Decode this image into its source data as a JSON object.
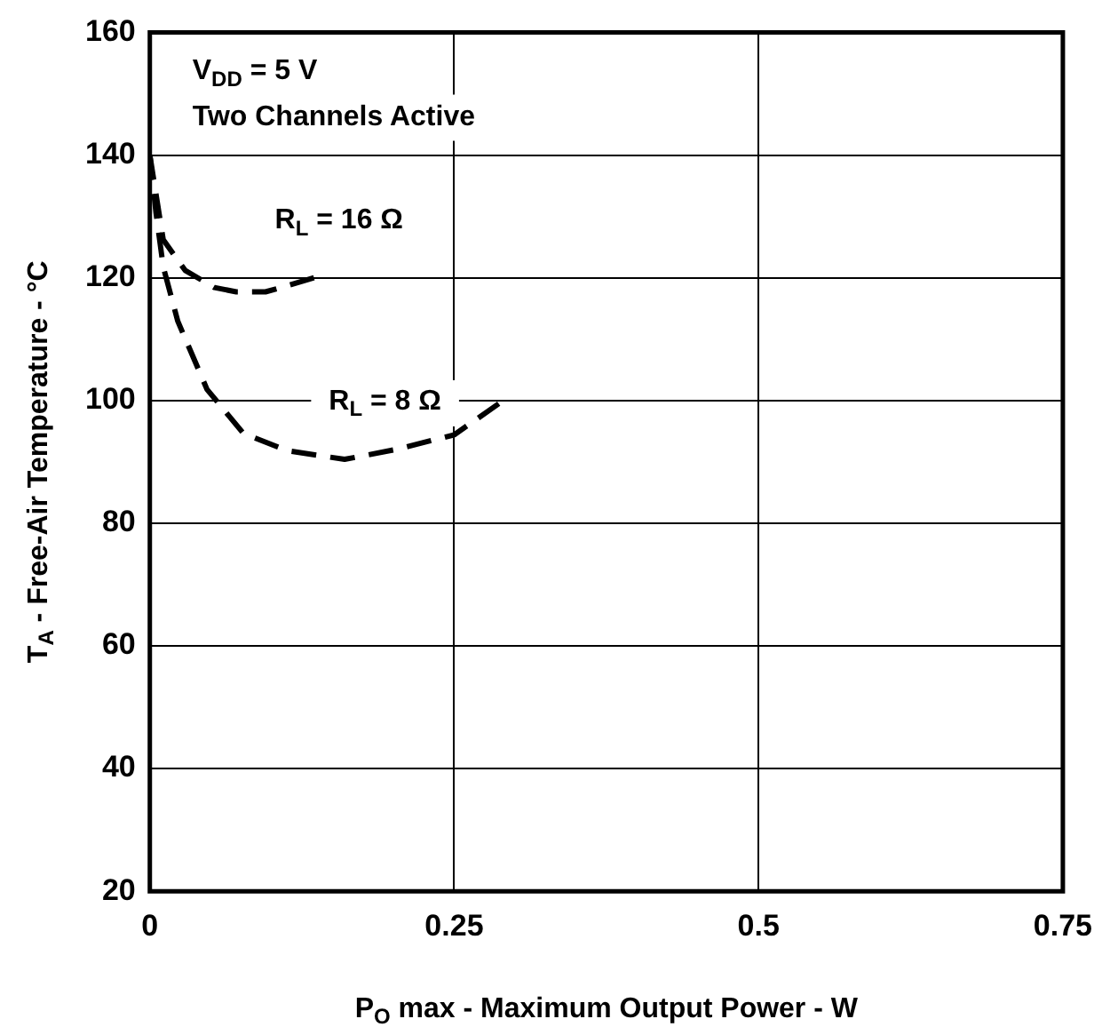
{
  "chart_data": {
    "type": "line",
    "xlabel": "P$_{O}$ max - Maximum Output Power - W",
    "ylabel": "T$_{A}$ - Free-Air Temperature - °C",
    "xlim": [
      0,
      0.75
    ],
    "xticks": [
      0,
      0.25,
      0.5,
      0.75
    ],
    "ylim": [
      20,
      160
    ],
    "yticks": [
      20,
      40,
      60,
      80,
      100,
      120,
      140,
      160
    ],
    "grid": true,
    "marker": "none",
    "line_style": "dashed",
    "series": [
      {
        "name": "R$_{L}$ = 16 Ω",
        "color": "#000000",
        "x": [
          0,
          0.011,
          0.029,
          0.053,
          0.071,
          0.095,
          0.113,
          0.135
        ],
        "values": [
          140,
          126.2,
          121.2,
          118.4,
          117.7,
          117.7,
          118.7,
          120
        ]
      },
      {
        "name": "R$_{L}$ = 8 Ω",
        "color": "#000000",
        "x": [
          0,
          0.005,
          0.011,
          0.023,
          0.047,
          0.077,
          0.113,
          0.16,
          0.202,
          0.25,
          0.289
        ],
        "values": [
          140,
          130.7,
          121.8,
          112.9,
          101.8,
          94.6,
          91.8,
          90.4,
          92,
          94.4,
          99.8
        ]
      }
    ],
    "annotations": [
      "V$_{DD}$ = 5 V",
      "Two Channels Active"
    ]
  }
}
